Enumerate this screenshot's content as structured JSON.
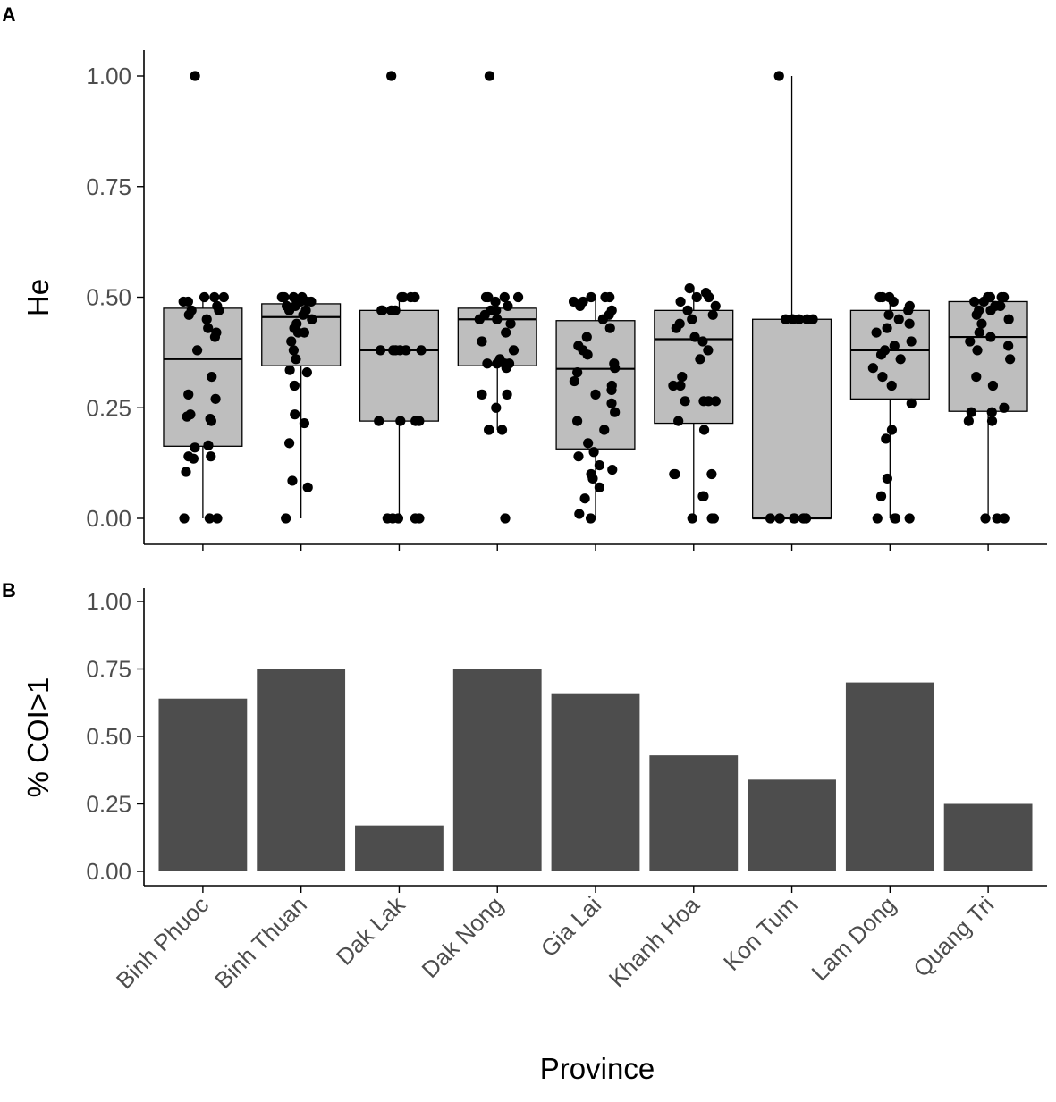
{
  "categories": [
    "Binh Phuoc",
    "Binh Thuan",
    "Dak Lak",
    "Dak Nong",
    "Gia Lai",
    "Khanh Hoa",
    "Kon Tum",
    "Lam Dong",
    "Quang Tri"
  ],
  "xlabel": "Province",
  "chart_data": [
    {
      "panel": "A",
      "type": "boxplot",
      "ylabel": "He",
      "ylim": [
        0,
        1
      ],
      "yticks": [
        "0.00",
        "0.25",
        "0.50",
        "0.75",
        "1.00"
      ],
      "box_fill": "#bebebe",
      "point_color": "#000000",
      "boxes": [
        {
          "category": "Binh Phuoc",
          "q1": 0.163,
          "median": 0.36,
          "q3": 0.475,
          "whisker_low": 0.0,
          "whisker_high": 0.5,
          "outliers": [
            1.0
          ],
          "points": [
            0,
            0,
            0,
            0.105,
            0.135,
            0.14,
            0.14,
            0.16,
            0.165,
            0.22,
            0.225,
            0.23,
            0.235,
            0.27,
            0.28,
            0.32,
            0.38,
            0.41,
            0.42,
            0.43,
            0.45,
            0.46,
            0.47,
            0.47,
            0.48,
            0.49,
            0.49,
            0.5,
            0.5,
            0.5
          ]
        },
        {
          "category": "Binh Thuan",
          "q1": 0.345,
          "median": 0.455,
          "q3": 0.485,
          "whisker_low": 0.0,
          "whisker_high": 0.5,
          "outliers": [],
          "points": [
            0,
            0.07,
            0.085,
            0.17,
            0.215,
            0.235,
            0.3,
            0.33,
            0.335,
            0.36,
            0.38,
            0.4,
            0.42,
            0.42,
            0.43,
            0.44,
            0.45,
            0.46,
            0.47,
            0.47,
            0.48,
            0.48,
            0.49,
            0.49,
            0.49,
            0.5,
            0.5,
            0.5,
            0.5
          ]
        },
        {
          "category": "Dak Lak",
          "q1": 0.22,
          "median": 0.38,
          "q3": 0.47,
          "whisker_low": 0.0,
          "whisker_high": 0.5,
          "outliers": [
            1.0
          ],
          "points": [
            0,
            0,
            0,
            0,
            0,
            0.22,
            0.22,
            0.22,
            0.22,
            0.38,
            0.38,
            0.38,
            0.38,
            0.38,
            0.38,
            0.47,
            0.47,
            0.47,
            0.47,
            0.5,
            0.5,
            0.5,
            0.5
          ]
        },
        {
          "category": "Dak Nong",
          "q1": 0.345,
          "median": 0.45,
          "q3": 0.475,
          "whisker_low": 0.2,
          "whisker_high": 0.5,
          "outliers": [
            1.0,
            0.0
          ],
          "points": [
            0.2,
            0.2,
            0.2,
            0.25,
            0.28,
            0.28,
            0.34,
            0.35,
            0.35,
            0.35,
            0.35,
            0.36,
            0.38,
            0.4,
            0.42,
            0.44,
            0.45,
            0.45,
            0.46,
            0.47,
            0.47,
            0.48,
            0.49,
            0.5,
            0.5,
            0.5,
            0.5
          ]
        },
        {
          "category": "Gia Lai",
          "q1": 0.157,
          "median": 0.338,
          "q3": 0.447,
          "whisker_low": 0.0,
          "whisker_high": 0.5,
          "outliers": [],
          "points": [
            0,
            0.01,
            0.045,
            0.07,
            0.09,
            0.1,
            0.11,
            0.12,
            0.14,
            0.15,
            0.17,
            0.2,
            0.22,
            0.24,
            0.26,
            0.28,
            0.29,
            0.3,
            0.31,
            0.33,
            0.34,
            0.35,
            0.37,
            0.38,
            0.39,
            0.41,
            0.43,
            0.45,
            0.46,
            0.47,
            0.48,
            0.49,
            0.49,
            0.5,
            0.5,
            0.5
          ]
        },
        {
          "category": "Khanh Hoa",
          "q1": 0.215,
          "median": 0.405,
          "q3": 0.47,
          "whisker_low": 0.0,
          "whisker_high": 0.52,
          "outliers": [],
          "points": [
            0,
            0,
            0,
            0.05,
            0.05,
            0.1,
            0.1,
            0.1,
            0.2,
            0.22,
            0.265,
            0.265,
            0.265,
            0.265,
            0.3,
            0.3,
            0.32,
            0.36,
            0.38,
            0.4,
            0.41,
            0.43,
            0.44,
            0.45,
            0.46,
            0.47,
            0.48,
            0.49,
            0.5,
            0.5,
            0.51,
            0.52
          ]
        },
        {
          "category": "Kon Tum",
          "q1": 0.0,
          "median": 0.0,
          "q3": 0.45,
          "whisker_low": 0.0,
          "whisker_high": 1.0,
          "outliers": [],
          "points": [
            0,
            0,
            0,
            0,
            0,
            0,
            0,
            0,
            0.45,
            0.45,
            0.45,
            0.45,
            0.45,
            0.45,
            1.0
          ]
        },
        {
          "category": "Lam Dong",
          "q1": 0.27,
          "median": 0.38,
          "q3": 0.47,
          "whisker_low": 0.0,
          "whisker_high": 0.5,
          "outliers": [],
          "points": [
            0,
            0,
            0,
            0,
            0.05,
            0.09,
            0.18,
            0.2,
            0.26,
            0.3,
            0.32,
            0.34,
            0.36,
            0.37,
            0.38,
            0.39,
            0.4,
            0.42,
            0.43,
            0.44,
            0.45,
            0.46,
            0.47,
            0.48,
            0.49,
            0.5,
            0.5,
            0.5
          ]
        },
        {
          "category": "Quang Tri",
          "q1": 0.242,
          "median": 0.41,
          "q3": 0.49,
          "whisker_low": 0.0,
          "whisker_high": 0.5,
          "outliers": [],
          "points": [
            0,
            0,
            0,
            0.22,
            0.22,
            0.24,
            0.24,
            0.25,
            0.3,
            0.32,
            0.36,
            0.38,
            0.39,
            0.4,
            0.41,
            0.42,
            0.44,
            0.45,
            0.46,
            0.47,
            0.47,
            0.48,
            0.48,
            0.49,
            0.49,
            0.5,
            0.5,
            0.5,
            0.5
          ]
        }
      ]
    },
    {
      "panel": "B",
      "type": "bar",
      "ylabel": "% COI>1",
      "ylim": [
        0,
        1
      ],
      "yticks": [
        "0.00",
        "0.25",
        "0.50",
        "0.75",
        "1.00"
      ],
      "bar_color": "#4d4d4d",
      "values": [
        0.64,
        0.75,
        0.17,
        0.75,
        0.66,
        0.43,
        0.34,
        0.7,
        0.25
      ]
    }
  ]
}
